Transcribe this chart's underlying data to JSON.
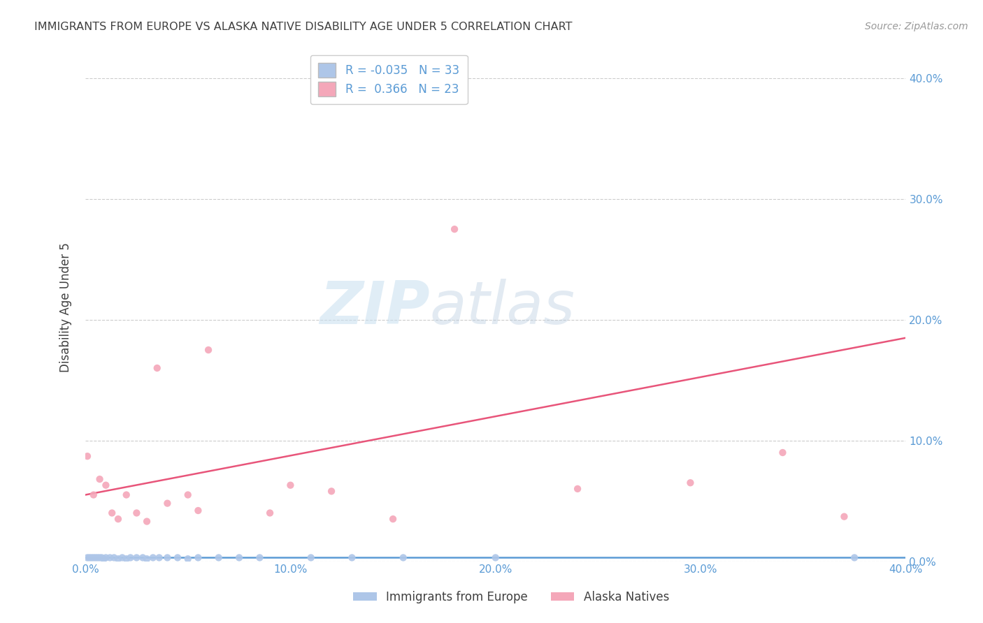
{
  "title": "IMMIGRANTS FROM EUROPE VS ALASKA NATIVE DISABILITY AGE UNDER 5 CORRELATION CHART",
  "source": "Source: ZipAtlas.com",
  "ylabel": "Disability Age Under 5",
  "xlim": [
    0.0,
    0.4
  ],
  "ylim": [
    0.0,
    0.42
  ],
  "xtick_labels": [
    "0.0%",
    "10.0%",
    "20.0%",
    "30.0%",
    "40.0%"
  ],
  "xtick_vals": [
    0.0,
    0.1,
    0.2,
    0.3,
    0.4
  ],
  "ytick_vals": [
    0.0,
    0.1,
    0.2,
    0.3,
    0.4
  ],
  "ytick_labels_right": [
    "0.0%",
    "10.0%",
    "20.0%",
    "30.0%",
    "40.0%"
  ],
  "blue_color": "#aec6e8",
  "pink_color": "#f4a7b9",
  "blue_line_color": "#5b9bd5",
  "pink_line_color": "#e8557a",
  "watermark_zip": "ZIP",
  "watermark_atlas": "atlas",
  "legend_R_blue": "-0.035",
  "legend_N_blue": "33",
  "legend_R_pink": "0.366",
  "legend_N_pink": "23",
  "legend_label_blue": "Immigrants from Europe",
  "legend_label_pink": "Alaska Natives",
  "blue_scatter_x": [
    0.001,
    0.002,
    0.003,
    0.004,
    0.005,
    0.006,
    0.007,
    0.008,
    0.009,
    0.01,
    0.012,
    0.014,
    0.016,
    0.018,
    0.02,
    0.022,
    0.025,
    0.028,
    0.03,
    0.033,
    0.036,
    0.04,
    0.045,
    0.05,
    0.055,
    0.065,
    0.075,
    0.085,
    0.11,
    0.13,
    0.155,
    0.2,
    0.375
  ],
  "blue_scatter_y": [
    0.003,
    0.003,
    0.003,
    0.003,
    0.003,
    0.003,
    0.003,
    0.003,
    0.002,
    0.003,
    0.003,
    0.003,
    0.002,
    0.003,
    0.002,
    0.003,
    0.003,
    0.003,
    0.002,
    0.003,
    0.003,
    0.003,
    0.003,
    0.002,
    0.003,
    0.003,
    0.003,
    0.003,
    0.003,
    0.003,
    0.003,
    0.003,
    0.003
  ],
  "pink_scatter_x": [
    0.001,
    0.004,
    0.007,
    0.01,
    0.013,
    0.016,
    0.02,
    0.025,
    0.03,
    0.035,
    0.04,
    0.05,
    0.055,
    0.06,
    0.09,
    0.1,
    0.12,
    0.15,
    0.18,
    0.24,
    0.295,
    0.34,
    0.37
  ],
  "pink_scatter_y": [
    0.087,
    0.055,
    0.068,
    0.063,
    0.04,
    0.035,
    0.055,
    0.04,
    0.033,
    0.16,
    0.048,
    0.055,
    0.042,
    0.175,
    0.04,
    0.063,
    0.058,
    0.035,
    0.275,
    0.06,
    0.065,
    0.09,
    0.037
  ],
  "blue_trend_x": [
    0.0,
    0.4
  ],
  "blue_trend_y": [
    0.003,
    0.003
  ],
  "pink_trend_x": [
    0.0,
    0.4
  ],
  "pink_trend_y": [
    0.055,
    0.185
  ],
  "background_color": "#ffffff",
  "grid_color": "#cccccc",
  "title_color": "#404040",
  "source_color": "#999999",
  "axis_label_color": "#404040",
  "tick_color": "#5b9bd5",
  "legend_text_color": "#5b9bd5"
}
